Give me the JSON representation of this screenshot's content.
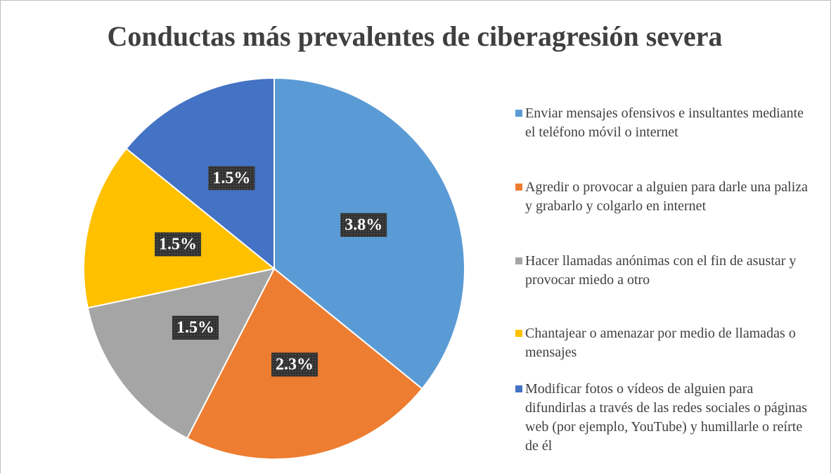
{
  "chart_data": {
    "type": "pie",
    "title": "Conductas más prevalentes de ciberagresión severa",
    "categories": [
      "Enviar mensajes ofensivos e insultantes mediante el teléfono móvil o internet",
      "Agredir o provocar a alguien para darle una paliza y grabarlo y colgarlo en internet",
      "Hacer llamadas anónimas con el fin de asustar y provocar miedo a otro",
      "Chantajear o amenazar por medio de llamadas o mensajes",
      "Modificar fotos o vídeos de alguien para difundirlas a través de las redes sociales o páginas web (por ejemplo, YouTube) y humillarle o reírte de él"
    ],
    "values": [
      3.8,
      2.3,
      1.5,
      1.5,
      1.5
    ],
    "value_labels": [
      "3.8%",
      "2.3%",
      "1.5%",
      "1.5%",
      "1.5%"
    ],
    "colors": [
      "#5b9bd5",
      "#ed7d31",
      "#a5a5a5",
      "#ffc000",
      "#4472c4"
    ],
    "legend": "right"
  }
}
